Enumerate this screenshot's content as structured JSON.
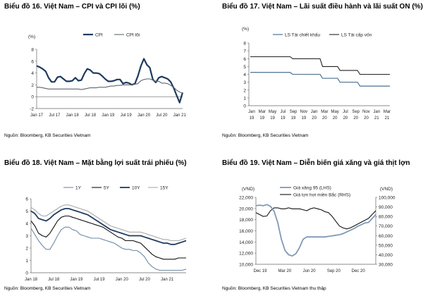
{
  "chart_data": [
    {
      "type": "line",
      "title": "Biểu đồ 16. Việt Nam – CPI và CPI lõi (%)",
      "ylabel": "(%)",
      "ylim": [
        -2,
        8
      ],
      "yticks": [
        "8",
        "6",
        "4",
        "2",
        "0",
        "-2"
      ],
      "xticks": [
        "Jan 17",
        "Jul 17",
        "Jan 18",
        "Jul 18",
        "Jan 19",
        "Jul 19",
        "Jan 20",
        "Jul 20",
        "Jan 21"
      ],
      "source": "Nguồn: Bloomberg, KB Securities Vietnam",
      "series": [
        {
          "name": "CPI",
          "color": "#1f3a5f",
          "width": 2.2,
          "values": [
            5.2,
            5.0,
            4.7,
            4.3,
            3.2,
            2.5,
            2.5,
            3.3,
            3.4,
            3.0,
            2.6,
            2.6,
            2.7,
            3.2,
            2.7,
            2.8,
            3.9,
            4.7,
            4.5,
            4.0,
            4.0,
            3.9,
            3.5,
            3.0,
            2.6,
            2.6,
            2.7,
            2.9,
            2.9,
            2.2,
            2.4,
            2.3,
            2.0,
            2.2,
            3.5,
            5.2,
            6.4,
            5.4,
            4.9,
            2.9,
            2.4,
            3.2,
            3.4,
            3.2,
            3.0,
            2.5,
            1.5,
            0.2,
            -1.0,
            0.7
          ]
        },
        {
          "name": "CPI lõi",
          "color": "#5d6770",
          "width": 1.1,
          "values": [
            1.6,
            1.6,
            1.5,
            1.4,
            1.3,
            1.3,
            1.3,
            1.3,
            1.3,
            1.3,
            1.3,
            1.3,
            1.3,
            1.3,
            1.3,
            1.2,
            1.3,
            1.4,
            1.5,
            1.5,
            1.5,
            1.6,
            1.6,
            1.6,
            1.7,
            1.8,
            1.8,
            1.9,
            1.9,
            2.0,
            2.0,
            2.0,
            2.0,
            2.1,
            2.2,
            2.7,
            2.9,
            3.0,
            3.0,
            2.8,
            2.6,
            2.6,
            2.3,
            2.3,
            2.2,
            1.9,
            1.6,
            1.1,
            0.8,
            0.6
          ]
        }
      ]
    },
    {
      "type": "line",
      "title": "Biểu đồ 17. Việt Nam – Lãi suất điều hành và lãi suất ON (%)",
      "ylabel": "(%)",
      "ylim": [
        0,
        8
      ],
      "yticks": [
        "8",
        "7",
        "6",
        "5",
        "4",
        "3",
        "2",
        "1",
        "0"
      ],
      "xticks": [
        [
          "Jan",
          "19"
        ],
        [
          "Mar",
          "19"
        ],
        [
          "May",
          "19"
        ],
        [
          "Jul",
          "19"
        ],
        [
          "Sep",
          "19"
        ],
        [
          "Nov",
          "19"
        ],
        [
          "Jan",
          "20"
        ],
        [
          "Mar",
          "20"
        ],
        [
          "May",
          "20"
        ],
        [
          "Jul",
          "20"
        ],
        [
          "Sep",
          "20"
        ],
        [
          "Nov",
          "20"
        ],
        [
          "Jan",
          "21"
        ],
        [
          "Mar",
          "21"
        ]
      ],
      "source": "Nguồn: Bloomberg, KB Securities Vietnam",
      "series": [
        {
          "name": "LS Tái chiết khấu",
          "color": "#5b7c99",
          "width": 1.3,
          "values": [
            4.25,
            4.25,
            4.25,
            4.25,
            4.25,
            4.25,
            4.25,
            4.25,
            4.25,
            4.25,
            4.25,
            4.25,
            4.25,
            4.25,
            4.25,
            4.25,
            4.25,
            4.0,
            4.0,
            4.0,
            4.0,
            4.0,
            4.0,
            4.0,
            4.0,
            4.0,
            4.0,
            4.0,
            4.0,
            3.5,
            3.5,
            3.5,
            3.5,
            3.5,
            3.5,
            3.5,
            3.0,
            3.0,
            3.0,
            3.0,
            3.0,
            3.0,
            3.0,
            3.0,
            2.5,
            2.5,
            2.5,
            2.5,
            2.5,
            2.5,
            2.5,
            2.5,
            2.5,
            2.5,
            2.5,
            2.5,
            2.5
          ]
        },
        {
          "name": "LS Tái cấp vốn",
          "color": "#222222",
          "width": 1.1,
          "values": [
            6.25,
            6.25,
            6.25,
            6.25,
            6.25,
            6.25,
            6.25,
            6.25,
            6.25,
            6.25,
            6.25,
            6.25,
            6.25,
            6.25,
            6.25,
            6.25,
            6.25,
            6.0,
            6.0,
            6.0,
            6.0,
            6.0,
            6.0,
            6.0,
            6.0,
            6.0,
            6.0,
            6.0,
            6.0,
            5.0,
            5.0,
            5.0,
            5.0,
            5.0,
            5.0,
            5.0,
            4.5,
            4.5,
            4.5,
            4.5,
            4.5,
            4.5,
            4.5,
            4.5,
            4.0,
            4.0,
            4.0,
            4.0,
            4.0,
            4.0,
            4.0,
            4.0,
            4.0,
            4.0,
            4.0,
            4.0,
            4.0
          ]
        }
      ]
    },
    {
      "type": "line",
      "title": "Biểu đồ 18. Việt Nam – Mặt bằng lợi suất trái phiếu (%)",
      "ylabel": "",
      "ylim": [
        0,
        6
      ],
      "yticks": [
        "6",
        "5",
        "4",
        "3",
        "2",
        "1",
        "0"
      ],
      "xticks": [
        "Jan 18",
        "Jul 18",
        "Jan 19",
        "Jul 19",
        "Jan 20",
        "Jul 20",
        "Jan 21"
      ],
      "source": "Nguồn: Bloomberg, KB Securities Vietnam",
      "series": [
        {
          "name": "1Y",
          "color": "#6f8aa6",
          "width": 1.1,
          "values": [
            3.6,
            3.1,
            2.6,
            2.2,
            1.9,
            1.9,
            2.4,
            3.0,
            3.5,
            3.7,
            3.7,
            3.5,
            3.4,
            3.1,
            3.0,
            2.9,
            2.8,
            2.8,
            2.8,
            2.7,
            2.6,
            2.5,
            2.4,
            2.2,
            2.0,
            1.9,
            1.9,
            1.8,
            1.8,
            1.6,
            1.3,
            0.8,
            0.5,
            0.3,
            0.2,
            0.2,
            0.2,
            0.2,
            0.2,
            0.2,
            0.2,
            0.3
          ]
        },
        {
          "name": "5Y",
          "color": "#111111",
          "width": 1.1,
          "values": [
            4.2,
            3.8,
            3.2,
            3.0,
            2.9,
            3.2,
            3.7,
            4.2,
            4.5,
            4.6,
            4.6,
            4.5,
            4.4,
            4.3,
            4.2,
            4.1,
            4.0,
            3.9,
            3.8,
            3.7,
            3.5,
            3.3,
            3.1,
            2.9,
            2.8,
            2.6,
            2.6,
            2.6,
            2.5,
            2.4,
            2.1,
            1.8,
            1.5,
            1.3,
            1.2,
            1.1,
            1.1,
            1.1,
            1.1,
            1.2,
            1.2,
            1.2
          ]
        },
        {
          "name": "10Y",
          "color": "#1f3a5f",
          "width": 1.8,
          "values": [
            5.0,
            4.8,
            4.4,
            4.3,
            4.2,
            4.4,
            4.7,
            4.9,
            5.1,
            5.2,
            5.2,
            5.1,
            5.0,
            4.9,
            4.8,
            4.7,
            4.5,
            4.3,
            4.1,
            3.9,
            3.7,
            3.5,
            3.4,
            3.3,
            3.2,
            3.1,
            3.0,
            3.0,
            3.0,
            3.0,
            2.9,
            2.8,
            2.7,
            2.6,
            2.5,
            2.4,
            2.4,
            2.3,
            2.3,
            2.4,
            2.5,
            2.6
          ]
        },
        {
          "name": "15Y",
          "color": "#a9a9a9",
          "width": 1.1,
          "values": [
            5.3,
            5.1,
            4.8,
            4.6,
            4.6,
            4.8,
            5.0,
            5.2,
            5.4,
            5.5,
            5.5,
            5.4,
            5.3,
            5.2,
            5.1,
            5.0,
            4.8,
            4.6,
            4.4,
            4.2,
            4.0,
            3.8,
            3.7,
            3.6,
            3.5,
            3.4,
            3.3,
            3.3,
            3.3,
            3.3,
            3.2,
            3.1,
            3.0,
            2.9,
            2.8,
            2.7,
            2.7,
            2.6,
            2.6,
            2.6,
            2.7,
            2.8
          ]
        }
      ]
    },
    {
      "type": "line",
      "title": "Biểu đồ 19. Việt Nam – Diễn biến giá xăng và giá thịt lợn",
      "ylabel": "(VND)",
      "y2label": "(VND)",
      "ylim": [
        10000,
        22000
      ],
      "y2lim": [
        30000,
        100000
      ],
      "yticks": [
        "22,000",
        "20,000",
        "18,000",
        "16,000",
        "14,000",
        "12,000",
        "10,000"
      ],
      "y2ticks": [
        "100,000",
        "90,000",
        "80,000",
        "70,000",
        "60,000",
        "50,000",
        "40,000",
        "30,000"
      ],
      "xticks": [
        "Dec 19",
        "Mar 20",
        "Jun 20",
        "Sep 20",
        "Dec 20"
      ],
      "source": "Nguồn: Bloomberg, KB Securities Vietnam thu thập",
      "series": [
        {
          "name": "Giá xăng 95 (LHS)",
          "axis": "left",
          "color": "#7f9ab5",
          "width": 1.8,
          "values": [
            20500,
            20600,
            20500,
            20700,
            20400,
            19500,
            17500,
            14500,
            12500,
            11700,
            11500,
            11900,
            13000,
            14500,
            14900,
            14900,
            14900,
            14900,
            14900,
            14900,
            15000,
            15100,
            15200,
            15300,
            15500,
            15800,
            16100,
            16400,
            16800,
            17100,
            17400,
            17500,
            18200,
            18900
          ]
        },
        {
          "name": "Giá lợn hơi miền Bắc (RHS)",
          "axis": "right",
          "color": "#111111",
          "width": 1.1,
          "values": [
            84000,
            82000,
            80000,
            80500,
            86000,
            89000,
            89000,
            88000,
            88000,
            89000,
            88000,
            88000,
            88000,
            87000,
            86000,
            88000,
            89000,
            88000,
            87000,
            85000,
            84000,
            80000,
            75000,
            70000,
            68000,
            67000,
            68000,
            70000,
            72000,
            74000,
            76000,
            78000,
            82000,
            86000
          ]
        }
      ]
    }
  ]
}
